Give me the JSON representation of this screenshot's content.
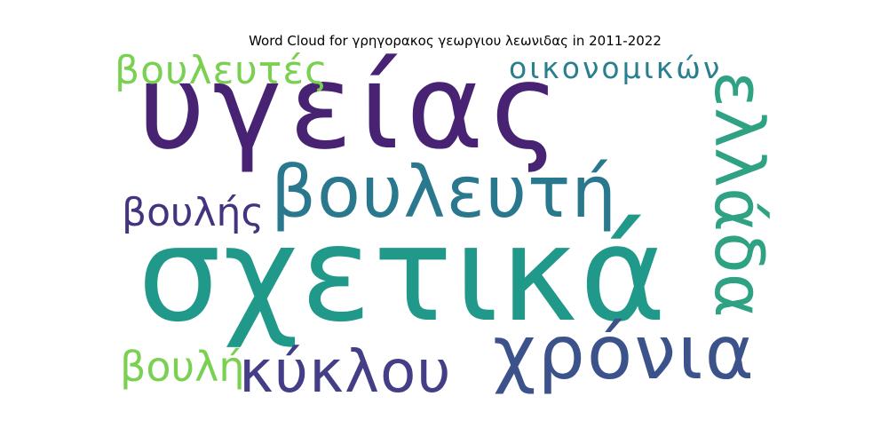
{
  "title": "Word Cloud for γρηγορακος γεωργιου λεωνιδας in 2011-2022",
  "words": {
    "ygeias": {
      "text": "υγείας",
      "color": "#482374"
    },
    "sxetika": {
      "text": "σχετικά",
      "color": "#21998a"
    },
    "vouleuti": {
      "text": "βουλευτή",
      "color": "#2a788e"
    },
    "xronia": {
      "text": "χρόνια",
      "color": "#3b528b"
    },
    "kyklou": {
      "text": "κύκλου",
      "color": "#433e85"
    },
    "voulis": {
      "text": "βουλής",
      "color": "#46337f"
    },
    "vouleytes": {
      "text": "βουλευτές",
      "color": "#7ad151"
    },
    "oikonomikon": {
      "text": "οικονομικών",
      "color": "#2a7f8e"
    },
    "voulh": {
      "text": "βουλή",
      "color": "#7ad151"
    },
    "ellada": {
      "text": "ελλάδα",
      "color": "#2ea283"
    }
  }
}
